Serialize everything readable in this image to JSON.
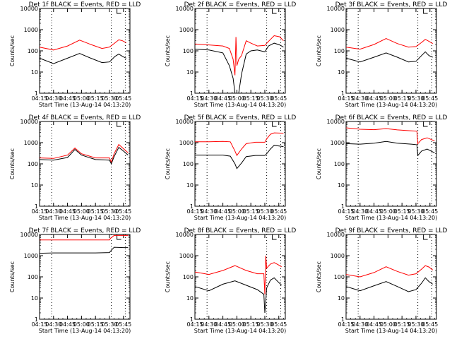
{
  "chart_data": [
    {
      "type": "line",
      "title": "Det 1f BLACK = Events, RED = LLD",
      "xlabel": "Start Time (13-Aug-14 04:13:20)",
      "ylabel": "Counts/sec",
      "yscale": "log",
      "ylim": [
        1,
        10000
      ],
      "xlim": [
        "04:15",
        "05:52"
      ],
      "x_ticks": [
        "04:15",
        "04:30",
        "04:45",
        "05:00",
        "05:15",
        "05:30",
        "05:45"
      ],
      "y_ticks": [
        "1",
        "10",
        "100",
        "1000",
        "10000"
      ],
      "markers": [
        "04:28",
        "05:32",
        "05:47"
      ],
      "series": [
        {
          "color": "#000000",
          "x": [
            "04:15",
            "04:30",
            "04:45",
            "04:58",
            "05:10",
            "05:22",
            "05:30",
            "05:36",
            "05:40",
            "05:44",
            "05:48"
          ],
          "values": [
            45,
            25,
            45,
            75,
            45,
            28,
            30,
            55,
            70,
            55,
            45
          ]
        },
        {
          "color": "#ff0000",
          "x": [
            "04:15",
            "04:30",
            "04:45",
            "04:58",
            "05:10",
            "05:22",
            "05:30",
            "05:36",
            "05:40",
            "05:44",
            "05:48"
          ],
          "values": [
            150,
            110,
            170,
            320,
            200,
            130,
            150,
            240,
            330,
            300,
            240
          ]
        }
      ]
    },
    {
      "type": "line",
      "title": "Det 2f BLACK = Events, RED = LLD",
      "xlabel": "Start Time (13-Aug-14 04:13:20)",
      "ylabel": "Counts/sec",
      "yscale": "log",
      "ylim": [
        1,
        10000
      ],
      "xlim": [
        "04:15",
        "05:52"
      ],
      "x_ticks": [
        "04:15",
        "04:30",
        "04:45",
        "05:00",
        "05:15",
        "05:30",
        "05:45"
      ],
      "y_ticks": [
        "1",
        "10",
        "100",
        "1000",
        "10000"
      ],
      "markers": [
        "04:28",
        "05:32",
        "05:47"
      ],
      "series": [
        {
          "color": "#000000",
          "x": [
            "04:15",
            "04:30",
            "04:45",
            "04:52",
            "04:56",
            "04:58",
            "05:00",
            "05:02",
            "05:05",
            "05:10",
            "05:15",
            "05:22",
            "05:30",
            "05:34",
            "05:40",
            "05:46",
            "05:50"
          ],
          "values": [
            120,
            110,
            80,
            20,
            5,
            1,
            1,
            1,
            8,
            70,
            100,
            110,
            90,
            170,
            230,
            190,
            150
          ]
        },
        {
          "color": "#ff0000",
          "x": [
            "04:15",
            "04:30",
            "04:45",
            "04:52",
            "04:56",
            "04:58",
            "04:59",
            "05:00",
            "05:02",
            "05:05",
            "05:10",
            "05:15",
            "05:22",
            "05:30",
            "05:34",
            "05:40",
            "05:46",
            "05:50"
          ],
          "values": [
            210,
            190,
            170,
            130,
            40,
            7,
            450,
            20,
            40,
            60,
            300,
            230,
            170,
            180,
            280,
            520,
            460,
            300
          ]
        }
      ]
    },
    {
      "type": "line",
      "title": "Det 3f BLACK = Events, RED = LLD",
      "xlabel": "Start Time (13-Aug-14 04:13:20)",
      "ylabel": "Counts/sec",
      "yscale": "log",
      "ylim": [
        1,
        10000
      ],
      "xlim": [
        "04:15",
        "05:52"
      ],
      "x_ticks": [
        "04:15",
        "04:30",
        "04:45",
        "05:00",
        "05:15",
        "05:30",
        "05:45"
      ],
      "y_ticks": [
        "1",
        "10",
        "100",
        "1000",
        "10000"
      ],
      "markers": [
        "04:28",
        "05:32",
        "05:47"
      ],
      "series": [
        {
          "color": "#000000",
          "x": [
            "04:15",
            "04:30",
            "04:45",
            "04:58",
            "05:10",
            "05:22",
            "05:30",
            "05:36",
            "05:40",
            "05:44",
            "05:48"
          ],
          "values": [
            45,
            30,
            50,
            80,
            50,
            30,
            32,
            60,
            90,
            60,
            50
          ]
        },
        {
          "color": "#ff0000",
          "x": [
            "04:15",
            "04:30",
            "04:45",
            "04:58",
            "05:10",
            "05:22",
            "05:30",
            "05:36",
            "05:40",
            "05:44",
            "05:48"
          ],
          "values": [
            150,
            120,
            200,
            380,
            220,
            150,
            160,
            250,
            350,
            280,
            220
          ]
        }
      ]
    },
    {
      "type": "line",
      "title": "Det 4f BLACK = Events, RED = LLD",
      "xlabel": "Start Time (13-Aug-14 04:13:20)",
      "ylabel": "Counts/sec",
      "yscale": "log",
      "ylim": [
        1,
        10000
      ],
      "xlim": [
        "04:15",
        "05:52"
      ],
      "x_ticks": [
        "04:15",
        "04:30",
        "04:45",
        "05:00",
        "05:15",
        "05:30",
        "05:45"
      ],
      "y_ticks": [
        "1",
        "10",
        "100",
        "1000",
        "10000"
      ],
      "markers": [
        "04:28",
        "05:32",
        "05:47"
      ],
      "series": [
        {
          "color": "#000000",
          "x": [
            "04:15",
            "04:30",
            "04:45",
            "04:53",
            "05:00",
            "05:15",
            "05:30",
            "05:32",
            "05:35",
            "05:40",
            "05:45",
            "05:50"
          ],
          "values": [
            160,
            150,
            200,
            480,
            260,
            160,
            150,
            100,
            220,
            600,
            400,
            260
          ]
        },
        {
          "color": "#ff0000",
          "x": [
            "04:15",
            "04:30",
            "04:45",
            "04:53",
            "05:00",
            "05:15",
            "05:30",
            "05:32",
            "05:35",
            "05:40",
            "05:45",
            "05:50"
          ],
          "values": [
            190,
            180,
            260,
            560,
            300,
            190,
            190,
            120,
            300,
            820,
            520,
            330
          ]
        }
      ]
    },
    {
      "type": "line",
      "title": "Det 5f BLACK = Events, RED = LLD",
      "xlabel": "Start Time (13-Aug-14 04:13:20)",
      "ylabel": "Counts/sec",
      "yscale": "log",
      "ylim": [
        1,
        10000
      ],
      "xlim": [
        "04:15",
        "05:52"
      ],
      "x_ticks": [
        "04:15",
        "04:30",
        "04:45",
        "05:00",
        "05:15",
        "05:30",
        "05:45"
      ],
      "y_ticks": [
        "1",
        "10",
        "100",
        "1000",
        "10000"
      ],
      "markers": [
        "04:28",
        "05:32",
        "05:47"
      ],
      "series": [
        {
          "color": "#000000",
          "x": [
            "04:15",
            "04:30",
            "04:45",
            "04:53",
            "04:58",
            "05:00",
            "05:05",
            "05:10",
            "05:20",
            "05:30",
            "05:32",
            "05:36",
            "05:40",
            "05:50"
          ],
          "values": [
            260,
            260,
            260,
            230,
            100,
            60,
            110,
            220,
            250,
            250,
            300,
            500,
            750,
            650
          ]
        },
        {
          "color": "#ff0000",
          "x": [
            "04:15",
            "04:30",
            "04:45",
            "04:53",
            "04:58",
            "05:00",
            "05:05",
            "05:10",
            "05:20",
            "05:30",
            "05:32",
            "05:36",
            "05:40",
            "05:50"
          ],
          "values": [
            1100,
            1100,
            1150,
            1100,
            400,
            250,
            500,
            900,
            1050,
            1050,
            1500,
            2500,
            2900,
            2800
          ]
        }
      ]
    },
    {
      "type": "line",
      "title": "Det 6f BLACK = Events, RED = LLD",
      "xlabel": "Start Time (13-Aug-14 04:13:20)",
      "ylabel": "Counts/sec",
      "yscale": "log",
      "ylim": [
        1,
        10000
      ],
      "xlim": [
        "04:15",
        "05:52"
      ],
      "x_ticks": [
        "04:15",
        "04:30",
        "04:45",
        "05:00",
        "05:15",
        "05:30",
        "05:45"
      ],
      "y_ticks": [
        "1",
        "10",
        "100",
        "1000",
        "10000"
      ],
      "markers": [
        "04:28",
        "05:32",
        "05:47"
      ],
      "series": [
        {
          "color": "#000000",
          "x": [
            "04:15",
            "04:30",
            "04:45",
            "04:58",
            "05:10",
            "05:25",
            "05:31",
            "05:32",
            "05:36",
            "05:42",
            "05:50"
          ],
          "values": [
            900,
            850,
            950,
            1150,
            950,
            850,
            800,
            250,
            400,
            500,
            330
          ]
        },
        {
          "color": "#ff0000",
          "x": [
            "04:15",
            "04:30",
            "04:45",
            "04:58",
            "05:10",
            "05:25",
            "05:31",
            "05:32",
            "05:36",
            "05:42",
            "05:50"
          ],
          "values": [
            5000,
            4300,
            4100,
            4600,
            4000,
            3600,
            3500,
            900,
            1400,
            1700,
            1200
          ]
        }
      ]
    },
    {
      "type": "line",
      "title": "Det 7f BLACK = Events, RED = LLD",
      "xlabel": "Start Time (13-Aug-14 04:13:20)",
      "ylabel": "Counts/sec",
      "yscale": "log",
      "ylim": [
        1,
        10000
      ],
      "xlim": [
        "04:15",
        "05:52"
      ],
      "x_ticks": [
        "04:15",
        "04:30",
        "04:45",
        "05:00",
        "05:15",
        "05:30",
        "05:45"
      ],
      "y_ticks": [
        "1",
        "10",
        "100",
        "1000",
        "10000"
      ],
      "markers": [
        "04:28",
        "05:32",
        "05:47"
      ],
      "series": [
        {
          "color": "#000000",
          "x": [
            "04:15",
            "04:30",
            "04:45",
            "05:00",
            "05:15",
            "05:30",
            "05:31",
            "05:35",
            "05:45",
            "05:50"
          ],
          "values": [
            1300,
            1350,
            1350,
            1350,
            1350,
            1400,
            1600,
            2500,
            2400,
            2400
          ]
        },
        {
          "color": "#ff0000",
          "x": [
            "04:15",
            "04:30",
            "04:45",
            "05:00",
            "05:15",
            "05:30",
            "05:31",
            "05:35",
            "05:45",
            "05:50"
          ],
          "values": [
            5500,
            5500,
            5500,
            5500,
            5500,
            5500,
            6500,
            9000,
            9000,
            9000
          ]
        }
      ]
    },
    {
      "type": "line",
      "title": "Det 8f BLACK = Events, RED = LLD",
      "xlabel": "Start Time (13-Aug-14 04:13:20)",
      "ylabel": "Counts/sec",
      "yscale": "log",
      "ylim": [
        1,
        10000
      ],
      "xlim": [
        "04:15",
        "05:52"
      ],
      "x_ticks": [
        "04:15",
        "04:30",
        "04:45",
        "05:00",
        "05:15",
        "05:30",
        "05:45"
      ],
      "y_ticks": [
        "1",
        "10",
        "100",
        "1000",
        "10000"
      ],
      "markers": [
        "04:28",
        "05:32",
        "05:47"
      ],
      "series": [
        {
          "color": "#000000",
          "x": [
            "04:15",
            "04:30",
            "04:45",
            "04:58",
            "05:10",
            "05:22",
            "05:29",
            "05:30",
            "05:32",
            "05:36",
            "05:40",
            "05:44",
            "05:48"
          ],
          "values": [
            35,
            22,
            45,
            65,
            40,
            25,
            15,
            2,
            30,
            70,
            90,
            60,
            40
          ]
        },
        {
          "color": "#ff0000",
          "x": [
            "04:15",
            "04:30",
            "04:45",
            "04:58",
            "05:10",
            "05:22",
            "05:29",
            "05:30",
            "05:31",
            "05:32",
            "05:36",
            "05:40",
            "05:44",
            "05:48"
          ],
          "values": [
            170,
            130,
            200,
            340,
            200,
            140,
            140,
            15,
            1000,
            260,
            400,
            470,
            380,
            300
          ]
        }
      ]
    },
    {
      "type": "line",
      "title": "Det 9f BLACK = Events, RED = LLD",
      "xlabel": "Start Time (13-Aug-14 04:13:20)",
      "ylabel": "Counts/sec",
      "yscale": "log",
      "ylim": [
        1,
        10000
      ],
      "xlim": [
        "04:15",
        "05:52"
      ],
      "x_ticks": [
        "04:15",
        "04:30",
        "04:45",
        "05:00",
        "05:15",
        "05:30",
        "05:45"
      ],
      "y_ticks": [
        "1",
        "10",
        "100",
        "1000",
        "10000"
      ],
      "markers": [
        "04:28",
        "05:32",
        "05:47"
      ],
      "series": [
        {
          "color": "#000000",
          "x": [
            "04:15",
            "04:30",
            "04:45",
            "04:58",
            "05:10",
            "05:22",
            "05:30",
            "05:36",
            "05:40",
            "05:44",
            "05:48"
          ],
          "values": [
            35,
            22,
            38,
            60,
            35,
            20,
            25,
            50,
            90,
            60,
            45
          ]
        },
        {
          "color": "#ff0000",
          "x": [
            "04:15",
            "04:30",
            "04:45",
            "04:58",
            "05:10",
            "05:22",
            "05:30",
            "05:36",
            "05:40",
            "05:44",
            "05:48"
          ],
          "values": [
            130,
            100,
            160,
            300,
            180,
            120,
            140,
            230,
            340,
            290,
            210
          ]
        }
      ]
    }
  ]
}
